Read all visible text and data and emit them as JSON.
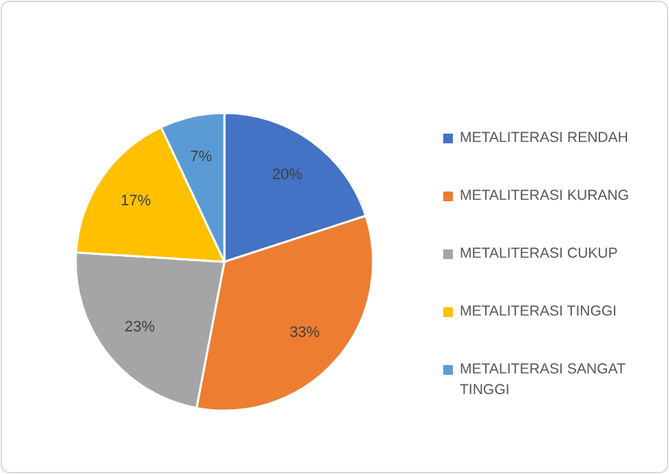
{
  "chart_data": {
    "type": "pie",
    "categories": [
      "METALITERASI RENDAH",
      "METALITERASI KURANG",
      "METALITERASI CUKUP",
      "METALITERASI TINGGI",
      "METALITERASI SANGAT TINGGI"
    ],
    "values": [
      20,
      33,
      23,
      17,
      7
    ],
    "colors": [
      "#4472c4",
      "#ed7d31",
      "#a5a5a5",
      "#ffc000",
      "#5b9bd5"
    ],
    "value_labels": [
      "20%",
      "33%",
      "23%",
      "17%",
      "7%"
    ],
    "legend": "right"
  }
}
